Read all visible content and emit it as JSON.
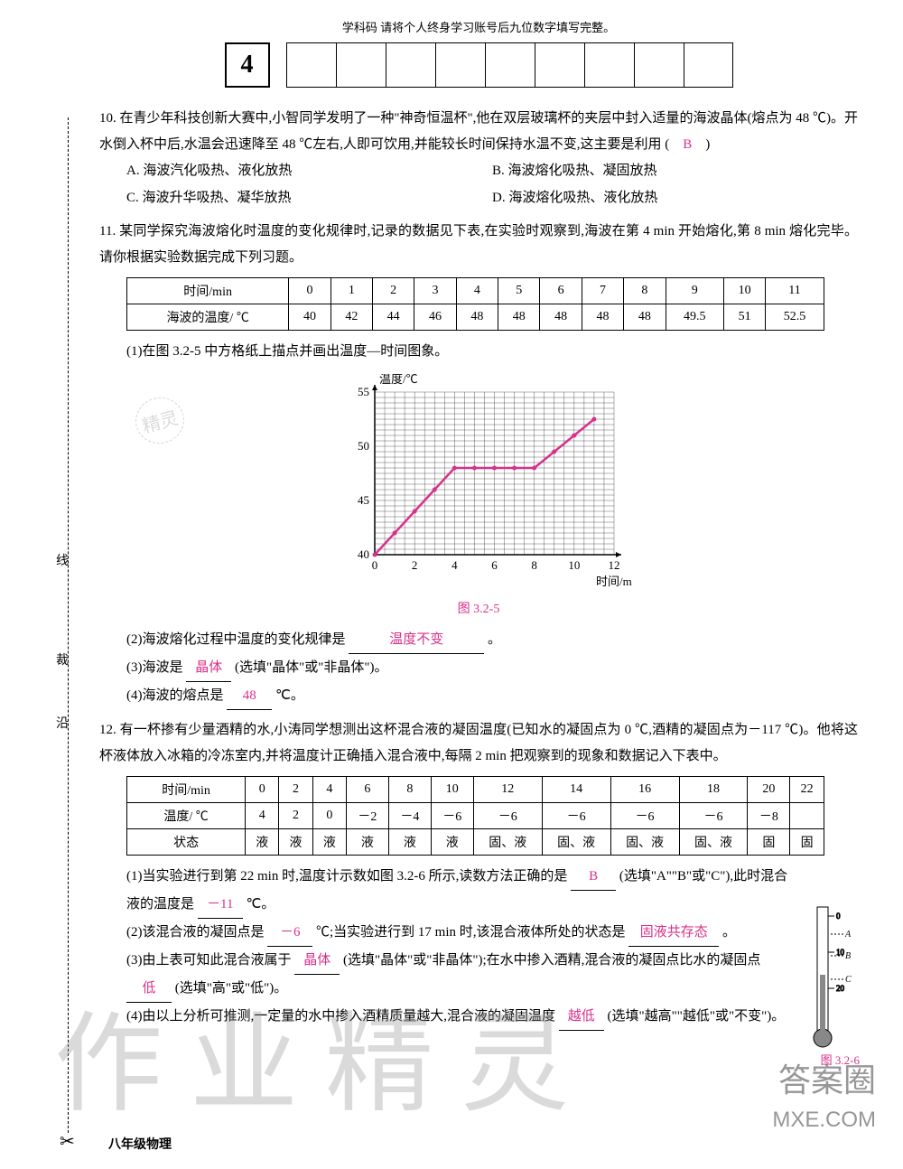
{
  "header": {
    "label": "学科码    请将个人终身学习账号后九位数字填写完整。",
    "code": "4"
  },
  "q10": {
    "text": "10. 在青少年科技创新大赛中,小智同学发明了一种\"神奇恒温杯\",他在双层玻璃杯的夹层中封入适量的海波晶体(熔点为 48 ℃)。开水倒入杯中后,水温会迅速降至 48 ℃左右,人即可饮用,并能较长时间保持水温不变,这主要是利用 (　",
    "answer": "B",
    "text_end": "　)",
    "optA": "A. 海波汽化吸热、液化放热",
    "optB": "B. 海波熔化吸热、凝固放热",
    "optC": "C. 海波升华吸热、凝华放热",
    "optD": "D. 海波熔化吸热、液化放热"
  },
  "q11": {
    "text": "11. 某同学探究海波熔化时温度的变化规律时,记录的数据见下表,在实验时观察到,海波在第 4 min 开始熔化,第 8 min 熔化完毕。请你根据实验数据完成下列习题。",
    "table": {
      "r1": [
        "时间/min",
        "0",
        "1",
        "2",
        "3",
        "4",
        "5",
        "6",
        "7",
        "8",
        "9",
        "10",
        "11"
      ],
      "r2": [
        "海波的温度/ ℃",
        "40",
        "42",
        "44",
        "46",
        "48",
        "48",
        "48",
        "48",
        "48",
        "49.5",
        "51",
        "52.5"
      ]
    },
    "sub1": "(1)在图 3.2-5 中方格纸上描点并画出温度—时间图象。",
    "chart": {
      "ylabel": "温度/℃",
      "xlabel": "时间/min",
      "xticks": [
        0,
        2,
        4,
        6,
        8,
        10,
        12
      ],
      "yticks": [
        40,
        45,
        50,
        55
      ],
      "xlim": [
        0,
        12
      ],
      "ylim": [
        40,
        55
      ],
      "points": [
        [
          0,
          40
        ],
        [
          1,
          42
        ],
        [
          2,
          44
        ],
        [
          3,
          46
        ],
        [
          4,
          48
        ],
        [
          5,
          48
        ],
        [
          6,
          48
        ],
        [
          7,
          48
        ],
        [
          8,
          48
        ],
        [
          9,
          49.5
        ],
        [
          10,
          51
        ],
        [
          11,
          52.5
        ]
      ],
      "line_color": "#d9308a",
      "grid_color": "#000000",
      "aspect_w": 280,
      "aspect_h": 200
    },
    "caption": "图 3.2-5",
    "sub2_a": "(2)海波熔化过程中温度的变化规律是",
    "sub2_ans": "温度不变",
    "sub2_b": "。",
    "sub3_a": "(3)海波是",
    "sub3_ans": "晶体",
    "sub3_b": "(选填\"晶体\"或\"非晶体\")。",
    "sub4_a": "(4)海波的熔点是",
    "sub4_ans": "48",
    "sub4_b": "℃。"
  },
  "q12": {
    "text": "12. 有一杯掺有少量酒精的水,小涛同学想测出这杯混合液的凝固温度(已知水的凝固点为 0 ℃,酒精的凝固点为－117 ℃)。他将这杯液体放入冰箱的冷冻室内,并将温度计正确插入混合液中,每隔 2 min 把观察到的现象和数据记入下表中。",
    "table": {
      "r1": [
        "时间/min",
        "0",
        "2",
        "4",
        "6",
        "8",
        "10",
        "12",
        "14",
        "16",
        "18",
        "20",
        "22"
      ],
      "r2": [
        "温度/ ℃",
        "4",
        "2",
        "0",
        "－2",
        "－4",
        "－6",
        "－6",
        "－6",
        "－6",
        "－6",
        "－8",
        ""
      ],
      "r3": [
        "状态",
        "液",
        "液",
        "液",
        "液",
        "液",
        "液",
        "固、液",
        "固、液",
        "固、液",
        "固、液",
        "固",
        "固"
      ]
    },
    "sub1_a": "(1)当实验进行到第 22 min 时,温度计示数如图 3.2-6 所示,读数方法正确的是",
    "sub1_ans1": "B",
    "sub1_b": "(选填\"A\"\"B\"或\"C\"),此时混合液的温度是",
    "sub1_ans2": "－11",
    "sub1_c": "℃。",
    "sub2_a": "(2)该混合液的凝固点是",
    "sub2_ans1": "－6",
    "sub2_b": "℃;当实验进行到 17 min 时,该混合液体所处的状态是",
    "sub2_ans2": "固液共存态",
    "sub2_c": "。",
    "sub3_a": "(3)由上表可知此混合液属于",
    "sub3_ans1": "晶体",
    "sub3_b": "(选填\"晶体\"或\"非晶体\");在水中掺入酒精,混合液的凝固点比水的凝固点",
    "sub3_ans2": "低",
    "sub3_c": "(选填\"高\"或\"低\")。",
    "sub4_a": "(4)由以上分析可推测,一定量的水中掺入酒精质量越大,混合液的凝固温度",
    "sub4_ans": "越低",
    "sub4_b": "(选填\"越高\"\"越低\"或\"不变\")。",
    "fig_caption": "图 3.2-6"
  },
  "footer": "八年级物理",
  "margin": {
    "t1": "线",
    "t2": "裁",
    "t3": "沿"
  },
  "watermarks": {
    "w1": "作业精灵",
    "w2": "答案圈",
    "w3": "MXE.COM",
    "w4": "精灵"
  }
}
